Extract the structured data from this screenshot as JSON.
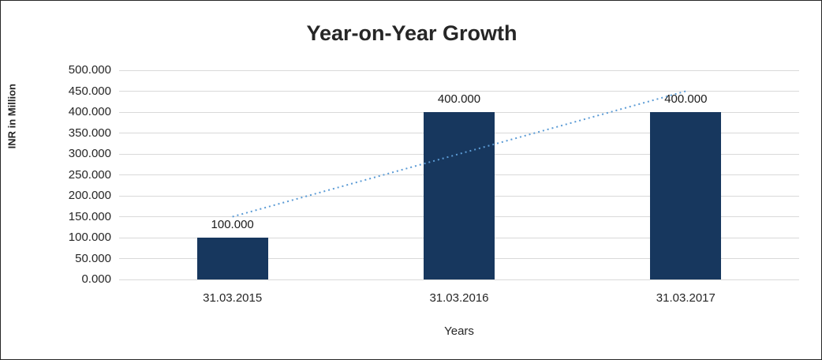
{
  "chart_data": {
    "type": "bar",
    "title": "Year-on-Year Growth",
    "xlabel": "Years",
    "ylabel": "INR in Million",
    "categories": [
      "31.03.2015",
      "31.03.2016",
      "31.03.2017"
    ],
    "values": [
      100,
      400,
      400
    ],
    "data_labels": [
      "100.000",
      "400.000",
      "400.000"
    ],
    "ylim": [
      0,
      500
    ],
    "ytick_step": 50,
    "ytick_labels": [
      "0.000",
      "50.000",
      "100.000",
      "150.000",
      "200.000",
      "250.000",
      "300.000",
      "350.000",
      "400.000",
      "450.000",
      "500.000"
    ],
    "grid": true,
    "legend": false,
    "bar_color": "#17375E",
    "trendline": {
      "type": "linear",
      "style": "dotted",
      "color": "#5B9BD5",
      "values_at_categories": [
        150,
        300,
        450
      ]
    }
  }
}
